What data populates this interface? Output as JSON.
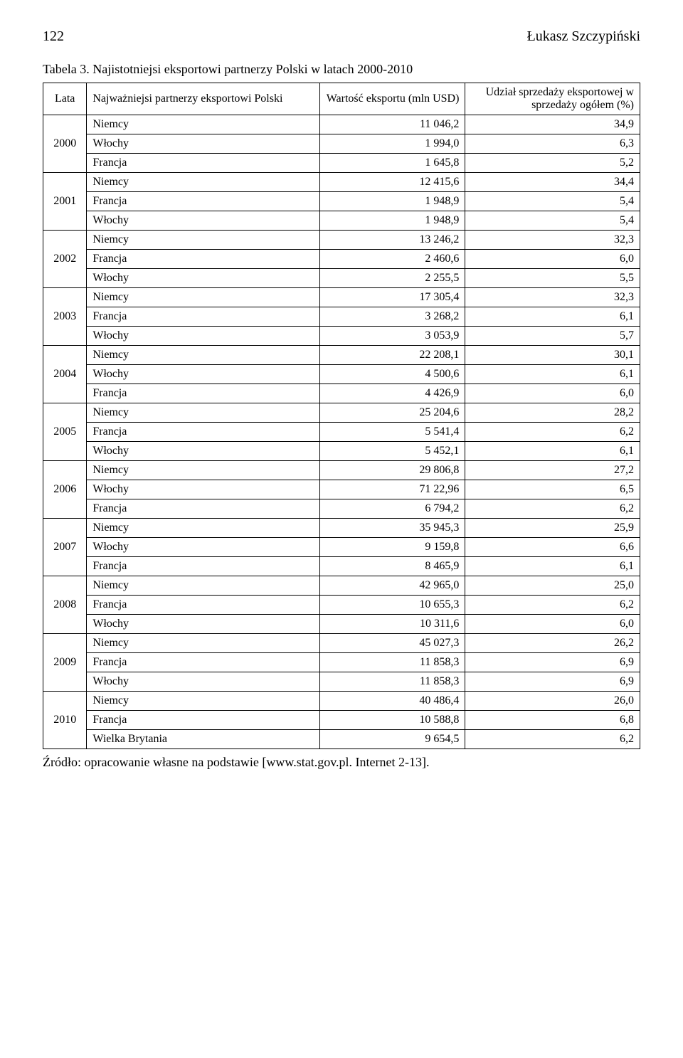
{
  "header": {
    "page_number": "122",
    "author": "Łukasz Szczypiński"
  },
  "table": {
    "caption": "Tabela 3. Najistotniejsi eksportowi partnerzy Polski w latach 2000-2010",
    "columns": {
      "year": "Lata",
      "partner": "Najważniejsi partnerzy eksportowi Polski",
      "value": "Wartość eksportu (mln USD)",
      "share": "Udział sprzedaży eksportowej w sprzedaży ogółem (%)"
    },
    "groups": [
      {
        "year": "2000",
        "rows": [
          {
            "partner": "Niemcy",
            "value": "11 046,2",
            "share": "34,9"
          },
          {
            "partner": "Włochy",
            "value": "1 994,0",
            "share": "6,3"
          },
          {
            "partner": "Francja",
            "value": "1 645,8",
            "share": "5,2"
          }
        ]
      },
      {
        "year": "2001",
        "rows": [
          {
            "partner": "Niemcy",
            "value": "12 415,6",
            "share": "34,4"
          },
          {
            "partner": "Francja",
            "value": "1 948,9",
            "share": "5,4"
          },
          {
            "partner": "Włochy",
            "value": "1 948,9",
            "share": "5,4"
          }
        ]
      },
      {
        "year": "2002",
        "rows": [
          {
            "partner": "Niemcy",
            "value": "13 246,2",
            "share": "32,3"
          },
          {
            "partner": "Francja",
            "value": "2 460,6",
            "share": "6,0"
          },
          {
            "partner": "Włochy",
            "value": "2 255,5",
            "share": "5,5"
          }
        ]
      },
      {
        "year": "2003",
        "rows": [
          {
            "partner": "Niemcy",
            "value": "17 305,4",
            "share": "32,3"
          },
          {
            "partner": "Francja",
            "value": "3 268,2",
            "share": "6,1"
          },
          {
            "partner": "Włochy",
            "value": "3 053,9",
            "share": "5,7"
          }
        ]
      },
      {
        "year": "2004",
        "rows": [
          {
            "partner": "Niemcy",
            "value": "22 208,1",
            "share": "30,1"
          },
          {
            "partner": "Włochy",
            "value": "4 500,6",
            "share": "6,1"
          },
          {
            "partner": "Francja",
            "value": "4 426,9",
            "share": "6,0"
          }
        ]
      },
      {
        "year": "2005",
        "rows": [
          {
            "partner": "Niemcy",
            "value": "25 204,6",
            "share": "28,2"
          },
          {
            "partner": "Francja",
            "value": "5 541,4",
            "share": "6,2"
          },
          {
            "partner": "Włochy",
            "value": "5 452,1",
            "share": "6,1"
          }
        ]
      },
      {
        "year": "2006",
        "rows": [
          {
            "partner": "Niemcy",
            "value": "29 806,8",
            "share": "27,2"
          },
          {
            "partner": "Włochy",
            "value": "71 22,96",
            "share": "6,5"
          },
          {
            "partner": "Francja",
            "value": "6 794,2",
            "share": "6,2"
          }
        ]
      },
      {
        "year": "2007",
        "rows": [
          {
            "partner": "Niemcy",
            "value": "35 945,3",
            "share": "25,9"
          },
          {
            "partner": "Włochy",
            "value": "9 159,8",
            "share": "6,6"
          },
          {
            "partner": "Francja",
            "value": "8 465,9",
            "share": "6,1"
          }
        ]
      },
      {
        "year": "2008",
        "rows": [
          {
            "partner": "Niemcy",
            "value": "42 965,0",
            "share": "25,0"
          },
          {
            "partner": "Francja",
            "value": "10 655,3",
            "share": "6,2"
          },
          {
            "partner": "Włochy",
            "value": "10 311,6",
            "share": "6,0"
          }
        ]
      },
      {
        "year": "2009",
        "rows": [
          {
            "partner": "Niemcy",
            "value": "45 027,3",
            "share": "26,2"
          },
          {
            "partner": "Francja",
            "value": "11 858,3",
            "share": "6,9"
          },
          {
            "partner": "Włochy",
            "value": "11 858,3",
            "share": "6,9"
          }
        ]
      },
      {
        "year": "2010",
        "rows": [
          {
            "partner": "Niemcy",
            "value": "40 486,4",
            "share": "26,0"
          },
          {
            "partner": "Francja",
            "value": "10 588,8",
            "share": "6,8"
          },
          {
            "partner": "Wielka Brytania",
            "value": "9 654,5",
            "share": "6,2"
          }
        ]
      }
    ],
    "source": "Źródło: opracowanie własne na podstawie [www.stat.gov.pl. Internet 2-13]."
  },
  "styles": {
    "page_background": "#ffffff",
    "text_color": "#000000",
    "border_color": "#000000",
    "font_family": "Times New Roman",
    "caption_fontsize": 18,
    "cell_fontsize": 16,
    "header_fontsize": 20
  }
}
